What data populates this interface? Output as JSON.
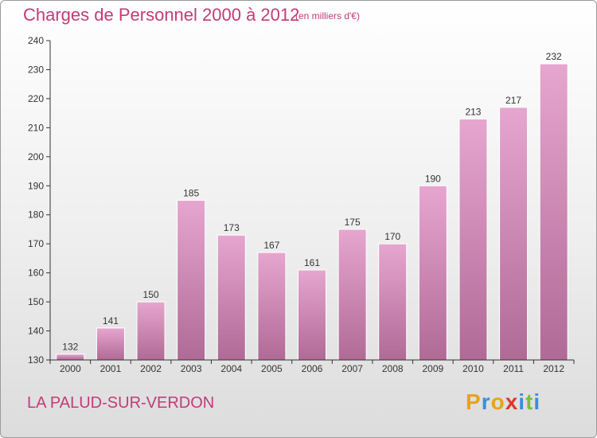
{
  "title": "Charges de Personnel 2000 à 2012",
  "subtitle": "(en milliers d'€)",
  "place_name": "LA PALUD-SUR-VERDON",
  "logo": {
    "letters": [
      "P",
      "r",
      "o",
      "x",
      "i",
      "t",
      "i"
    ],
    "colors": [
      "#e8a31b",
      "#3b8fd6",
      "#e8a31b",
      "#d93a2b",
      "#3b8fd6",
      "#7cbf3a",
      "#3b8fd6"
    ]
  },
  "colors": {
    "accent": "#c23b7a",
    "bar_top": "#e6a6cf",
    "bar_bottom": "#b06a96",
    "axis": "#333333"
  },
  "chart_data": {
    "type": "bar",
    "title": "Charges de Personnel 2000 à 2012",
    "subtitle": "(en milliers d'€)",
    "categories": [
      "2000",
      "2001",
      "2002",
      "2003",
      "2004",
      "2005",
      "2006",
      "2007",
      "2008",
      "2009",
      "2010",
      "2011",
      "2012"
    ],
    "values": [
      132,
      141,
      150,
      185,
      173,
      167,
      161,
      175,
      170,
      190,
      213,
      217,
      232
    ],
    "ylim": [
      130,
      240
    ],
    "yticks": [
      130,
      140,
      150,
      160,
      170,
      180,
      190,
      200,
      210,
      220,
      230,
      240
    ],
    "grid": false,
    "data_labels": true
  }
}
